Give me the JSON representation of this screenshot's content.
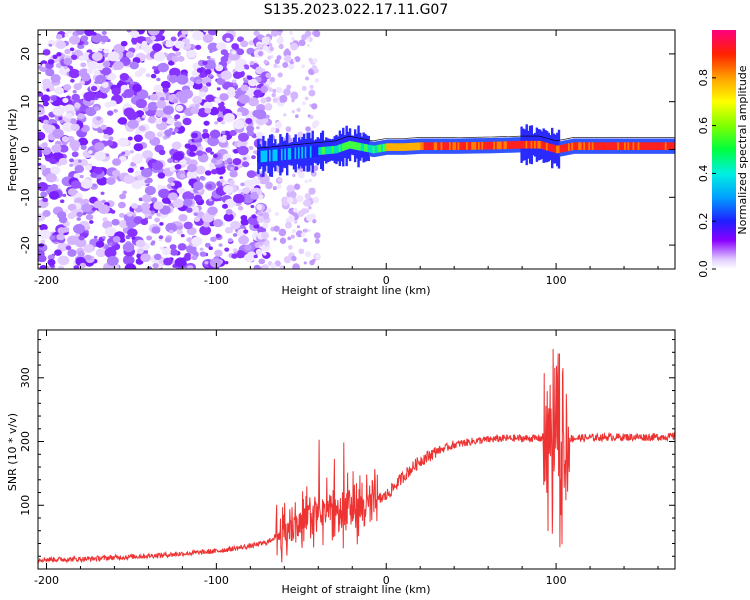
{
  "title": "S135.2023.022.17.11.G07",
  "chart_data": [
    {
      "type": "heatmap",
      "xlabel": "Height of straight line (km)",
      "ylabel": "Frequency (Hz)",
      "xlim": [
        -205,
        170
      ],
      "ylim": [
        -25,
        25
      ],
      "xticks": [
        -200,
        -100,
        0,
        100
      ],
      "yticks": [
        -20,
        -10,
        0,
        10,
        20
      ],
      "tone_freq_track": {
        "x": [
          -75,
          -60,
          -45,
          -30,
          -22,
          -15,
          -8,
          0,
          10,
          20,
          40,
          60,
          80,
          90,
          95,
          100,
          110,
          130,
          170
        ],
        "y": [
          -1.5,
          -1.0,
          -0.5,
          0.0,
          1.0,
          0.5,
          0.0,
          0.5,
          0.5,
          0.7,
          0.7,
          0.8,
          1.0,
          1.0,
          0.5,
          0.0,
          0.7,
          0.7,
          0.7
        ]
      },
      "colorbar": {
        "label": "Normalized spectral amplitude",
        "ticks": [
          "0.0",
          "0.2",
          "0.4",
          "0.6",
          "0.8"
        ],
        "range": [
          0,
          1
        ]
      }
    },
    {
      "type": "line",
      "xlabel": "Height of straight line (km)",
      "ylabel": "SNR (10 * v/v)",
      "xlim": [
        -205,
        170
      ],
      "ylim": [
        0,
        375
      ],
      "xticks": [
        -200,
        -100,
        0,
        100
      ],
      "yticks": [
        100,
        200,
        300
      ],
      "color": "#ee3333",
      "series": [
        {
          "x": [
            -205,
            -190,
            -175,
            -160,
            -145,
            -130,
            -115,
            -100,
            -90,
            -80,
            -70,
            -60,
            -50,
            -40,
            -30,
            -20,
            -10,
            0,
            10,
            20,
            30,
            40,
            50,
            60,
            70,
            80,
            90,
            100,
            110,
            120,
            130,
            140,
            150,
            160,
            170
          ],
          "values": [
            15,
            15,
            16,
            18,
            20,
            22,
            25,
            28,
            32,
            36,
            42,
            60,
            75,
            85,
            90,
            100,
            100,
            115,
            145,
            170,
            185,
            195,
            200,
            203,
            205,
            205,
            205,
            206,
            205,
            206,
            207,
            207,
            207,
            207,
            208
          ]
        }
      ]
    }
  ]
}
